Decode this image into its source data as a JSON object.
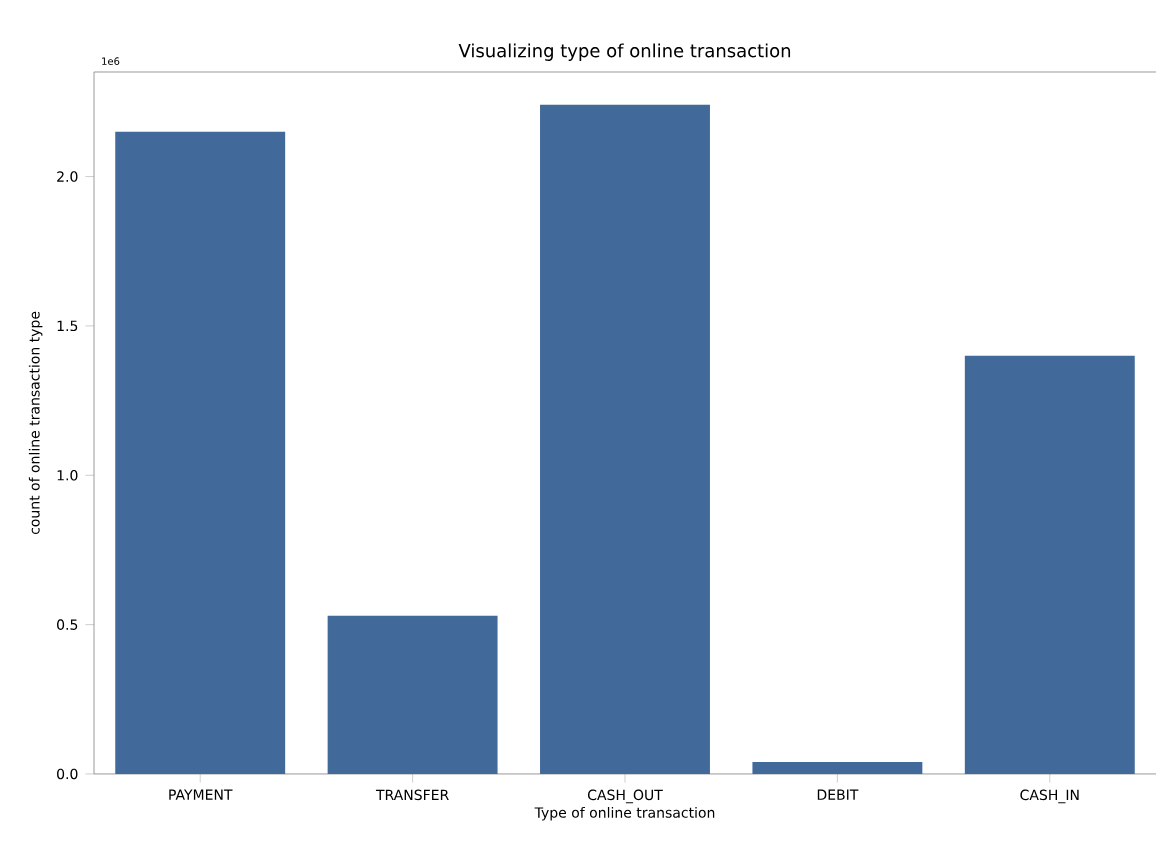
{
  "chart_data": {
    "type": "bar",
    "title": "Visualizing type of online transaction",
    "xlabel": "Type of online transaction",
    "ylabel": "count of online transaction type",
    "categories": [
      "PAYMENT",
      "TRANSFER",
      "CASH_OUT",
      "DEBIT",
      "CASH_IN"
    ],
    "values": [
      2.15,
      0.53,
      2.24,
      0.04,
      1.4
    ],
    "color": "#41699a",
    "ylim": [
      0,
      2.35
    ],
    "yticks": [
      {
        "value": 0,
        "label": "0.0"
      },
      {
        "value": 0.5,
        "label": "0.5"
      },
      {
        "value": 1,
        "label": "1.0"
      },
      {
        "value": 1.5,
        "label": "1.5"
      },
      {
        "value": 2,
        "label": "2.0"
      }
    ],
    "annotations": [
      "1e6"
    ],
    "grid": false
  }
}
